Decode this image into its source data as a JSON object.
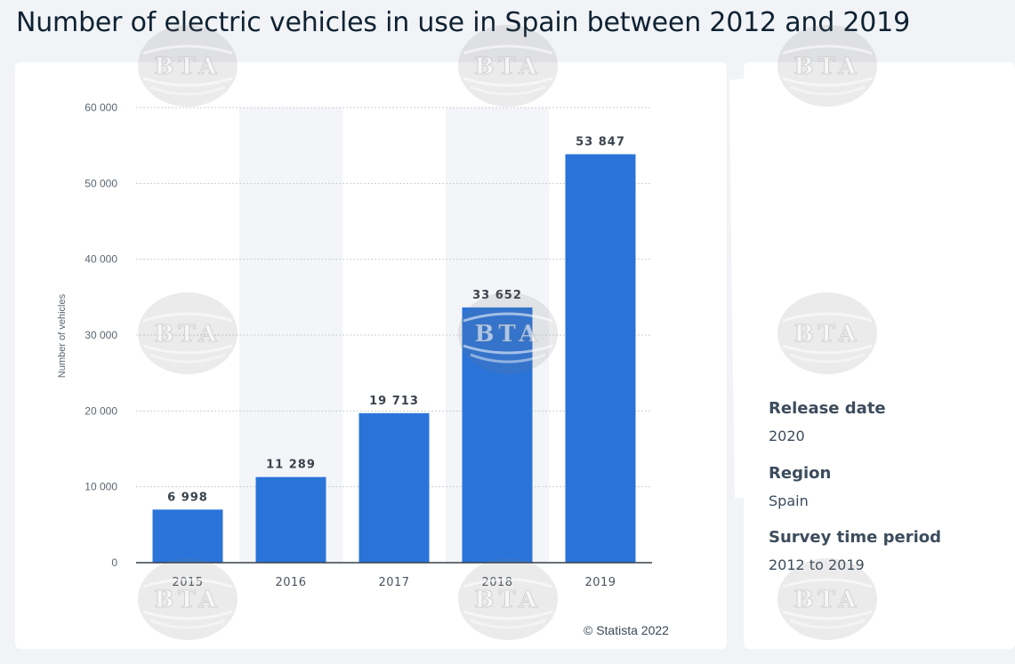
{
  "title": "Number of electric vehicles in use in Spain between 2012 and 2019",
  "credit": "© Statista 2022",
  "info": {
    "release_label": "Release date",
    "release_value": "2020",
    "region_label": "Region",
    "region_value": "Spain",
    "period_label": "Survey time period",
    "period_value": "2012 to 2019"
  },
  "watermark": "BTA",
  "colors": {
    "bar": "#2a74d9",
    "title": "#0f2233",
    "axis": "#36404a",
    "band": "#f4f5f8"
  },
  "chart_data": {
    "type": "bar",
    "categories": [
      "2015",
      "2016",
      "2017",
      "2018",
      "2019"
    ],
    "values": [
      6998,
      11289,
      19713,
      33652,
      53847
    ],
    "value_labels": [
      "6 998",
      "11 289",
      "19 713",
      "33 652",
      "53 847"
    ],
    "ylabel": "Number of vehicles",
    "xlabel": "",
    "ylim": [
      0,
      60000
    ],
    "yticks": [
      0,
      10000,
      20000,
      30000,
      40000,
      50000,
      60000
    ],
    "ytick_labels": [
      "0",
      "10 000",
      "20 000",
      "30 000",
      "40 000",
      "50 000",
      "60 000"
    ],
    "grid": true,
    "legend": "none"
  }
}
